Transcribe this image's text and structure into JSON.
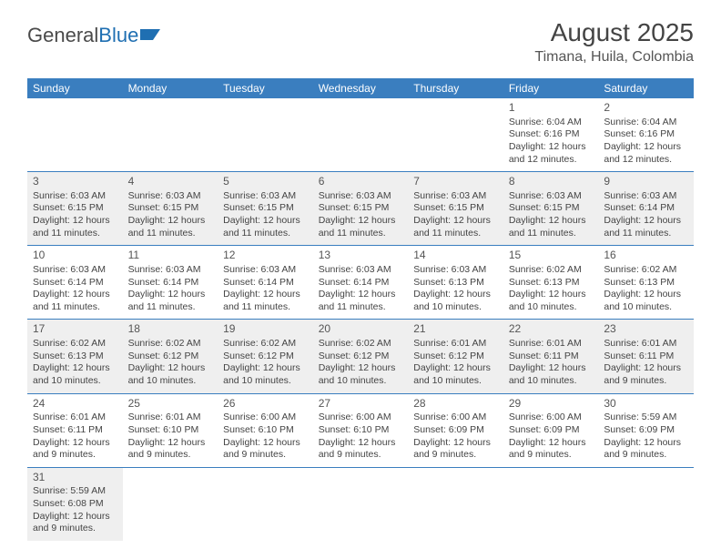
{
  "logo": {
    "part1": "General",
    "part2": "Blue"
  },
  "title": "August 2025",
  "location": "Timana, Huila, Colombia",
  "colors": {
    "header_bg": "#3a7ebf",
    "header_fg": "#ffffff",
    "row_shade": "#efefef",
    "border": "#3a7ebf",
    "logo_gray": "#4a4a4a",
    "logo_blue": "#1f6fb2"
  },
  "day_headers": [
    "Sunday",
    "Monday",
    "Tuesday",
    "Wednesday",
    "Thursday",
    "Friday",
    "Saturday"
  ],
  "weeks": [
    {
      "shaded": false,
      "days": [
        null,
        null,
        null,
        null,
        null,
        {
          "n": "1",
          "sunrise": "6:04 AM",
          "sunset": "6:16 PM",
          "daylight": "12 hours and 12 minutes."
        },
        {
          "n": "2",
          "sunrise": "6:04 AM",
          "sunset": "6:16 PM",
          "daylight": "12 hours and 12 minutes."
        }
      ]
    },
    {
      "shaded": true,
      "days": [
        {
          "n": "3",
          "sunrise": "6:03 AM",
          "sunset": "6:15 PM",
          "daylight": "12 hours and 11 minutes."
        },
        {
          "n": "4",
          "sunrise": "6:03 AM",
          "sunset": "6:15 PM",
          "daylight": "12 hours and 11 minutes."
        },
        {
          "n": "5",
          "sunrise": "6:03 AM",
          "sunset": "6:15 PM",
          "daylight": "12 hours and 11 minutes."
        },
        {
          "n": "6",
          "sunrise": "6:03 AM",
          "sunset": "6:15 PM",
          "daylight": "12 hours and 11 minutes."
        },
        {
          "n": "7",
          "sunrise": "6:03 AM",
          "sunset": "6:15 PM",
          "daylight": "12 hours and 11 minutes."
        },
        {
          "n": "8",
          "sunrise": "6:03 AM",
          "sunset": "6:15 PM",
          "daylight": "12 hours and 11 minutes."
        },
        {
          "n": "9",
          "sunrise": "6:03 AM",
          "sunset": "6:14 PM",
          "daylight": "12 hours and 11 minutes."
        }
      ]
    },
    {
      "shaded": false,
      "days": [
        {
          "n": "10",
          "sunrise": "6:03 AM",
          "sunset": "6:14 PM",
          "daylight": "12 hours and 11 minutes."
        },
        {
          "n": "11",
          "sunrise": "6:03 AM",
          "sunset": "6:14 PM",
          "daylight": "12 hours and 11 minutes."
        },
        {
          "n": "12",
          "sunrise": "6:03 AM",
          "sunset": "6:14 PM",
          "daylight": "12 hours and 11 minutes."
        },
        {
          "n": "13",
          "sunrise": "6:03 AM",
          "sunset": "6:14 PM",
          "daylight": "12 hours and 11 minutes."
        },
        {
          "n": "14",
          "sunrise": "6:03 AM",
          "sunset": "6:13 PM",
          "daylight": "12 hours and 10 minutes."
        },
        {
          "n": "15",
          "sunrise": "6:02 AM",
          "sunset": "6:13 PM",
          "daylight": "12 hours and 10 minutes."
        },
        {
          "n": "16",
          "sunrise": "6:02 AM",
          "sunset": "6:13 PM",
          "daylight": "12 hours and 10 minutes."
        }
      ]
    },
    {
      "shaded": true,
      "days": [
        {
          "n": "17",
          "sunrise": "6:02 AM",
          "sunset": "6:13 PM",
          "daylight": "12 hours and 10 minutes."
        },
        {
          "n": "18",
          "sunrise": "6:02 AM",
          "sunset": "6:12 PM",
          "daylight": "12 hours and 10 minutes."
        },
        {
          "n": "19",
          "sunrise": "6:02 AM",
          "sunset": "6:12 PM",
          "daylight": "12 hours and 10 minutes."
        },
        {
          "n": "20",
          "sunrise": "6:02 AM",
          "sunset": "6:12 PM",
          "daylight": "12 hours and 10 minutes."
        },
        {
          "n": "21",
          "sunrise": "6:01 AM",
          "sunset": "6:12 PM",
          "daylight": "12 hours and 10 minutes."
        },
        {
          "n": "22",
          "sunrise": "6:01 AM",
          "sunset": "6:11 PM",
          "daylight": "12 hours and 10 minutes."
        },
        {
          "n": "23",
          "sunrise": "6:01 AM",
          "sunset": "6:11 PM",
          "daylight": "12 hours and 9 minutes."
        }
      ]
    },
    {
      "shaded": false,
      "days": [
        {
          "n": "24",
          "sunrise": "6:01 AM",
          "sunset": "6:11 PM",
          "daylight": "12 hours and 9 minutes."
        },
        {
          "n": "25",
          "sunrise": "6:01 AM",
          "sunset": "6:10 PM",
          "daylight": "12 hours and 9 minutes."
        },
        {
          "n": "26",
          "sunrise": "6:00 AM",
          "sunset": "6:10 PM",
          "daylight": "12 hours and 9 minutes."
        },
        {
          "n": "27",
          "sunrise": "6:00 AM",
          "sunset": "6:10 PM",
          "daylight": "12 hours and 9 minutes."
        },
        {
          "n": "28",
          "sunrise": "6:00 AM",
          "sunset": "6:09 PM",
          "daylight": "12 hours and 9 minutes."
        },
        {
          "n": "29",
          "sunrise": "6:00 AM",
          "sunset": "6:09 PM",
          "daylight": "12 hours and 9 minutes."
        },
        {
          "n": "30",
          "sunrise": "5:59 AM",
          "sunset": "6:09 PM",
          "daylight": "12 hours and 9 minutes."
        }
      ]
    },
    {
      "shaded": true,
      "last": true,
      "days": [
        {
          "n": "31",
          "sunrise": "5:59 AM",
          "sunset": "6:08 PM",
          "daylight": "12 hours and 9 minutes."
        },
        null,
        null,
        null,
        null,
        null,
        null
      ]
    }
  ],
  "labels": {
    "sunrise": "Sunrise:",
    "sunset": "Sunset:",
    "daylight": "Daylight:"
  }
}
